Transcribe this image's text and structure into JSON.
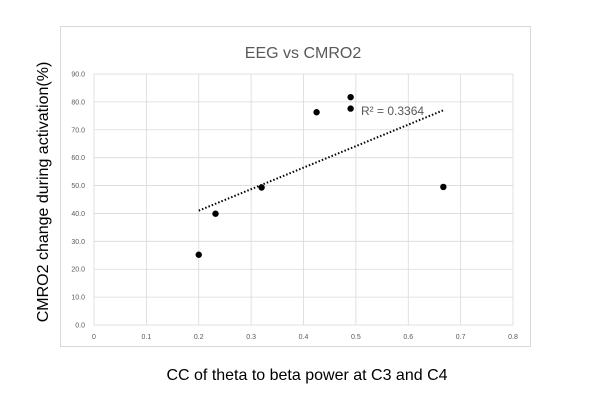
{
  "chart_data": {
    "type": "scatter",
    "title": "EEG vs CMRO2",
    "xlabel": "CC of theta to beta power at C3 and C4",
    "ylabel": "CMRO2 change  during activation(%)",
    "xlim": [
      0,
      0.8
    ],
    "ylim": [
      0,
      90
    ],
    "x_ticks": [
      "0",
      "0.1",
      "0.2",
      "0.3",
      "0.4",
      "0.5",
      "0.6",
      "0.7",
      "0.8"
    ],
    "y_ticks": [
      "0.0",
      "10.0",
      "20.0",
      "30.0",
      "40.0",
      "50.0",
      "60.0",
      "70.0",
      "80.0",
      "90.0"
    ],
    "grid": true,
    "points": [
      {
        "x": 0.2,
        "y": 25.2
      },
      {
        "x": 0.232,
        "y": 39.9
      },
      {
        "x": 0.32,
        "y": 49.3
      },
      {
        "x": 0.425,
        "y": 76.3
      },
      {
        "x": 0.49,
        "y": 77.6
      },
      {
        "x": 0.49,
        "y": 81.7
      },
      {
        "x": 0.667,
        "y": 49.5
      }
    ],
    "trendline": {
      "type": "linear",
      "style": "dotted",
      "x_start": 0.2,
      "y_start": 41.0,
      "x_end": 0.667,
      "y_end": 77.0,
      "r2_label": "R² = 0.3364"
    },
    "colors": {
      "points": "#000000",
      "trendline": "#000000",
      "grid": "#d9d9d9",
      "title": "#595959",
      "ticks": "#595959"
    }
  }
}
